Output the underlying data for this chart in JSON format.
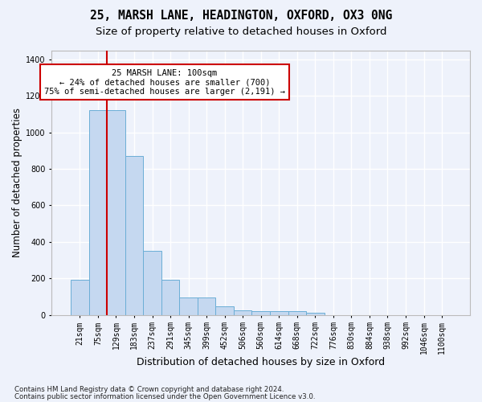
{
  "title1": "25, MARSH LANE, HEADINGTON, OXFORD, OX3 0NG",
  "title2": "Size of property relative to detached houses in Oxford",
  "xlabel": "Distribution of detached houses by size in Oxford",
  "ylabel": "Number of detached properties",
  "footnote1": "Contains HM Land Registry data © Crown copyright and database right 2024.",
  "footnote2": "Contains public sector information licensed under the Open Government Licence v3.0.",
  "bar_labels": [
    "21sqm",
    "75sqm",
    "129sqm",
    "183sqm",
    "237sqm",
    "291sqm",
    "345sqm",
    "399sqm",
    "452sqm",
    "506sqm",
    "560sqm",
    "614sqm",
    "668sqm",
    "722sqm",
    "776sqm",
    "830sqm",
    "884sqm",
    "938sqm",
    "992sqm",
    "1046sqm",
    "1100sqm"
  ],
  "bar_values": [
    190,
    1120,
    1120,
    870,
    350,
    190,
    95,
    95,
    48,
    25,
    20,
    18,
    18,
    10,
    0,
    0,
    0,
    0,
    0,
    0,
    0
  ],
  "bar_color": "#c5d8f0",
  "bar_edge_color": "#6baed6",
  "red_line_color": "#cc0000",
  "red_line_x": 1.5,
  "annotation_line1": "25 MARSH LANE: 100sqm",
  "annotation_line2": "← 24% of detached houses are smaller (700)",
  "annotation_line3": "75% of semi-detached houses are larger (2,191) →",
  "annotation_box_facecolor": "#ffffff",
  "annotation_box_edgecolor": "#cc0000",
  "ylim": [
    0,
    1450
  ],
  "yticks": [
    0,
    200,
    400,
    600,
    800,
    1000,
    1200,
    1400
  ],
  "background_color": "#eef2fb",
  "axes_background": "#eef2fb",
  "grid_color": "#ffffff",
  "title1_fontsize": 10.5,
  "title2_fontsize": 9.5,
  "xlabel_fontsize": 9,
  "ylabel_fontsize": 8.5,
  "tick_fontsize": 7,
  "annot_fontsize": 7.5,
  "footnote_fontsize": 6.2
}
